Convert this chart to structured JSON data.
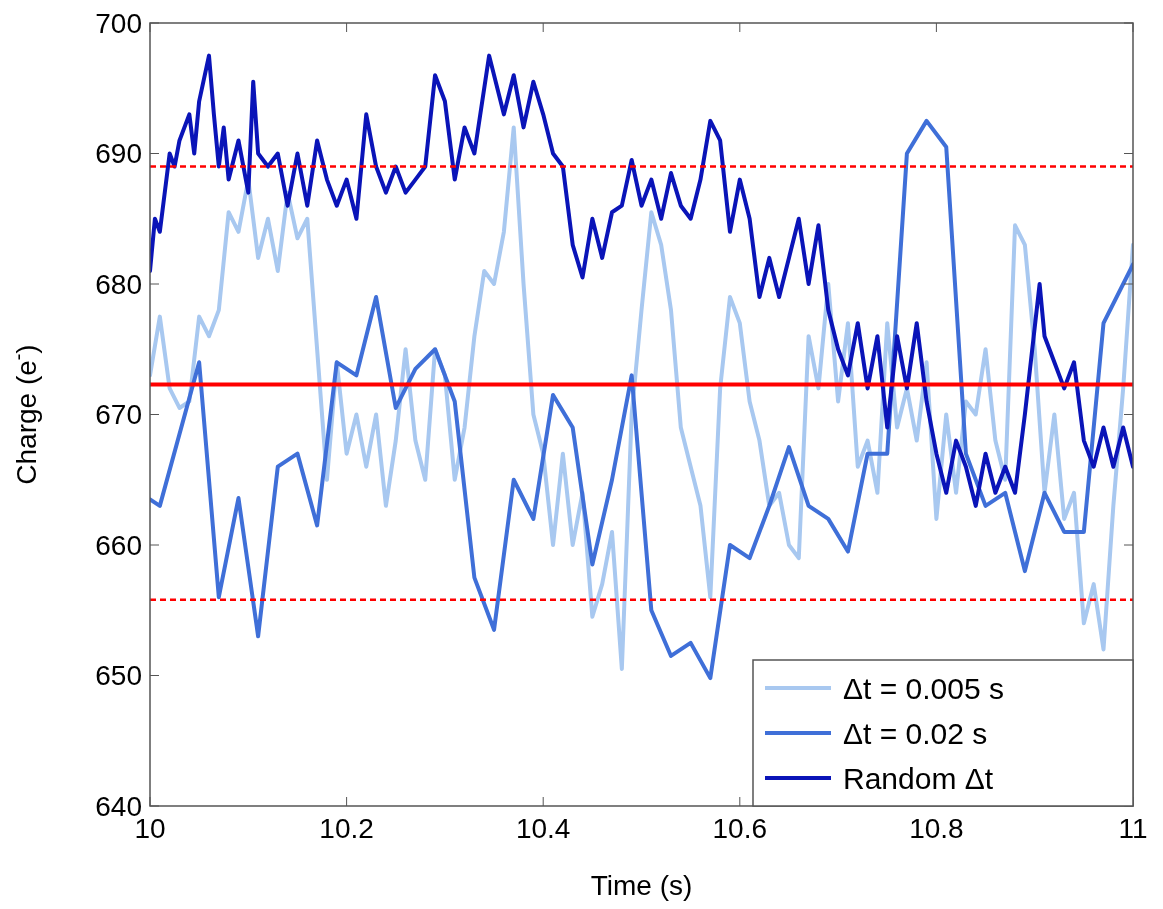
{
  "chart_data": {
    "type": "line",
    "xlabel": "Time (s)",
    "ylabel": "Charge (e$^{-}$)",
    "xlim": [
      10,
      11
    ],
    "xticks": [
      10,
      10.2,
      10.4,
      10.6,
      10.8,
      11
    ],
    "ylim": [
      640,
      700
    ],
    "yticks": [
      640,
      650,
      660,
      670,
      680,
      690,
      700
    ],
    "grid": false,
    "legend": "bottom right",
    "line_style": "solid",
    "marker": "none",
    "series": [
      {
        "name": "Δt = 0.005 s",
        "color": "#a8c8f0",
        "x": [
          10,
          10.01,
          10.02,
          10.03,
          10.04,
          10.05,
          10.06,
          10.07,
          10.08,
          10.09,
          10.1,
          10.11,
          10.12,
          10.13,
          10.14,
          10.15,
          10.16,
          10.17,
          10.18,
          10.19,
          10.2,
          10.21,
          10.22,
          10.23,
          10.24,
          10.25,
          10.26,
          10.27,
          10.28,
          10.29,
          10.3,
          10.31,
          10.32,
          10.33,
          10.34,
          10.35,
          10.36,
          10.37,
          10.38,
          10.39,
          10.4,
          10.41,
          10.42,
          10.43,
          10.44,
          10.45,
          10.46,
          10.47,
          10.48,
          10.49,
          10.5,
          10.51,
          10.52,
          10.53,
          10.54,
          10.55,
          10.56,
          10.57,
          10.58,
          10.59,
          10.6,
          10.61,
          10.62,
          10.63,
          10.64,
          10.65,
          10.66,
          10.67,
          10.68,
          10.69,
          10.7,
          10.71,
          10.72,
          10.73,
          10.74,
          10.75,
          10.76,
          10.77,
          10.78,
          10.79,
          10.8,
          10.81,
          10.82,
          10.83,
          10.84,
          10.85,
          10.86,
          10.87,
          10.88,
          10.89,
          10.9,
          10.91,
          10.92,
          10.93,
          10.94,
          10.95,
          10.96,
          10.97,
          10.98,
          10.99,
          11
        ],
        "values": [
          673,
          677.5,
          672,
          670.5,
          671,
          677.5,
          676,
          678,
          685.5,
          684,
          688,
          682,
          685,
          681,
          687,
          683.5,
          685,
          675,
          665,
          674,
          667,
          670,
          666,
          670,
          663,
          668,
          675,
          668,
          665,
          675,
          673,
          665,
          669,
          676,
          681,
          680,
          684,
          692,
          680,
          670,
          667,
          660,
          667,
          660,
          664,
          654.5,
          657,
          661,
          650.5,
          670,
          678,
          685.5,
          683,
          678,
          669,
          666,
          663,
          656,
          672,
          679,
          677,
          671,
          668,
          663,
          664,
          660,
          659,
          676,
          672,
          680,
          671,
          677,
          666,
          668,
          664,
          677,
          669,
          672,
          668,
          674,
          662,
          670,
          664,
          671,
          670,
          675,
          668,
          665,
          684.5,
          683,
          675,
          664,
          670,
          662,
          664,
          654,
          657,
          652,
          663,
          672,
          683
        ]
      },
      {
        "name": "Δt = 0.02 s",
        "color": "#3f6fd8",
        "x": [
          10,
          10.01,
          10.05,
          10.07,
          10.09,
          10.11,
          10.13,
          10.15,
          10.17,
          10.19,
          10.21,
          10.23,
          10.25,
          10.27,
          10.29,
          10.31,
          10.33,
          10.35,
          10.37,
          10.39,
          10.41,
          10.43,
          10.45,
          10.47,
          10.49,
          10.51,
          10.53,
          10.55,
          10.57,
          10.59,
          10.61,
          10.63,
          10.65,
          10.67,
          10.69,
          10.71,
          10.73,
          10.75,
          10.77,
          10.79,
          10.81,
          10.83,
          10.85,
          10.87,
          10.89,
          10.91,
          10.93,
          10.95,
          10.97,
          11
        ],
        "values": [
          663.5,
          663,
          674,
          656,
          663.6,
          653,
          666,
          667,
          661.5,
          674,
          673,
          679,
          670.5,
          673.5,
          675,
          671,
          657.5,
          653.5,
          665,
          662,
          671.5,
          669,
          658.5,
          665,
          673,
          655,
          651.5,
          652.5,
          649.8,
          660,
          659,
          663,
          667.5,
          663,
          662,
          659.5,
          667,
          667,
          690,
          692.5,
          690.5,
          667,
          663,
          664,
          658,
          664,
          661,
          661,
          677,
          681.5
        ]
      },
      {
        "name": "Random Δt",
        "color": "#0a14b8",
        "x": [
          10,
          10.005,
          10.01,
          10.02,
          10.025,
          10.03,
          10.04,
          10.045,
          10.05,
          10.06,
          10.065,
          10.07,
          10.075,
          10.08,
          10.09,
          10.1,
          10.105,
          10.11,
          10.12,
          10.13,
          10.14,
          10.15,
          10.16,
          10.17,
          10.18,
          10.19,
          10.2,
          10.21,
          10.22,
          10.23,
          10.24,
          10.25,
          10.26,
          10.27,
          10.28,
          10.29,
          10.3,
          10.31,
          10.32,
          10.33,
          10.345,
          10.36,
          10.37,
          10.38,
          10.39,
          10.4,
          10.41,
          10.42,
          10.43,
          10.44,
          10.45,
          10.46,
          10.47,
          10.48,
          10.49,
          10.5,
          10.51,
          10.52,
          10.53,
          10.54,
          10.55,
          10.56,
          10.57,
          10.58,
          10.59,
          10.6,
          10.61,
          10.62,
          10.63,
          10.64,
          10.65,
          10.66,
          10.67,
          10.68,
          10.69,
          10.7,
          10.71,
          10.72,
          10.73,
          10.74,
          10.75,
          10.76,
          10.77,
          10.78,
          10.79,
          10.8,
          10.81,
          10.82,
          10.83,
          10.84,
          10.85,
          10.86,
          10.87,
          10.88,
          10.89,
          10.905,
          10.91,
          10.92,
          10.93,
          10.94,
          10.95,
          10.96,
          10.97,
          10.98,
          10.99,
          11
        ],
        "values": [
          681,
          685,
          684,
          690,
          689,
          691,
          693,
          690,
          694,
          697.5,
          693,
          689,
          692,
          688,
          691,
          687,
          695.5,
          690,
          689,
          690,
          686,
          690,
          686,
          691,
          688,
          686,
          688,
          685,
          693,
          689,
          687,
          689,
          687,
          688,
          689,
          696,
          694,
          688,
          692,
          690,
          697.5,
          693,
          696,
          692,
          695.5,
          693,
          690,
          689,
          683,
          680.5,
          685,
          682,
          685.5,
          686,
          689.5,
          686,
          688,
          685,
          688.5,
          686,
          685,
          688,
          692.5,
          691,
          684,
          688,
          685,
          679,
          682,
          679,
          682,
          685,
          680,
          684.5,
          678,
          675,
          673,
          677,
          672,
          676,
          669,
          676,
          672,
          677,
          671,
          667,
          664,
          668,
          666,
          663,
          667,
          664,
          666,
          664,
          670,
          680,
          676,
          674,
          672,
          674,
          668,
          666,
          669,
          666,
          669,
          666
        ]
      }
    ],
    "ref_lines": [
      {
        "axis": "y",
        "value": 672.3,
        "color": "#ff0000",
        "line_style": "solid"
      },
      {
        "axis": "y",
        "value": 689,
        "color": "#ff0000",
        "line_style": "dashed"
      },
      {
        "axis": "y",
        "value": 655.8,
        "color": "#ff0000",
        "line_style": "dashed"
      }
    ]
  }
}
